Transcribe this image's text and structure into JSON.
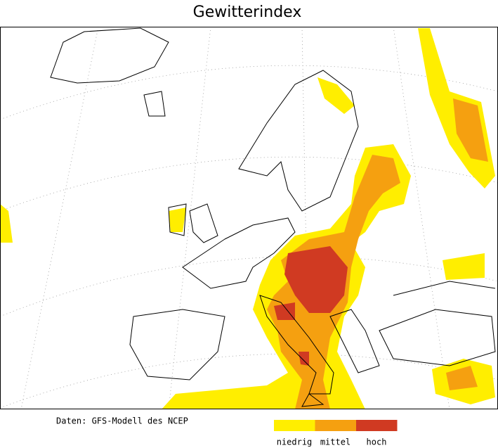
{
  "title": "Gewitterindex",
  "source": "Daten: GFS-Modell des NCEP",
  "legend": [
    {
      "label": "niedrig",
      "color": "#ffee00"
    },
    {
      "label": "mittel",
      "color": "#f5a010"
    },
    {
      "label": "hoch",
      "color": "#d03a22"
    }
  ]
}
